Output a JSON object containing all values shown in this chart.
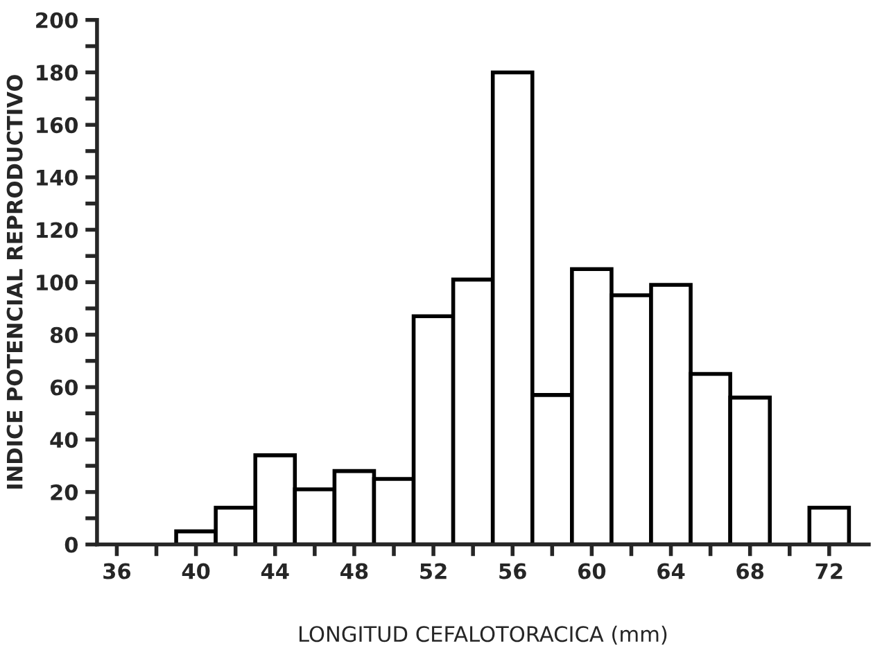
{
  "chart_data": {
    "type": "histogram",
    "xlabel": "LONGITUD CEFALOTORACICA (mm)",
    "ylabel": "INDICE POTENCIAL REPRODUCTIVO",
    "bins": [
      39,
      41,
      43,
      45,
      47,
      49,
      51,
      53,
      55,
      57,
      59,
      61,
      63,
      65,
      67,
      69,
      71,
      73
    ],
    "values": [
      5,
      14,
      34,
      21,
      28,
      25,
      87,
      101,
      180,
      57,
      105,
      95,
      99,
      65,
      56,
      null,
      14
    ],
    "color": "#ffffff",
    "xlim": [
      35,
      74
    ],
    "ylim": [
      0,
      200
    ],
    "xticks": [
      36,
      {
        "value": 38,
        "label": null
      },
      40,
      {
        "value": 42,
        "label": null
      },
      44,
      {
        "value": 46,
        "label": null
      },
      48,
      {
        "value": 50,
        "label": null
      },
      52,
      {
        "value": 54,
        "label": null
      },
      56,
      {
        "value": 58,
        "label": null
      },
      60,
      {
        "value": 62,
        "label": null
      },
      64,
      {
        "value": 66,
        "label": null
      },
      68,
      {
        "value": 70,
        "label": null
      },
      72
    ],
    "yticks": [
      0,
      {
        "value": 10,
        "label": null
      },
      20,
      {
        "value": 30,
        "label": null
      },
      40,
      {
        "value": 50,
        "label": null
      },
      60,
      {
        "value": 70,
        "label": null
      },
      80,
      {
        "value": 90,
        "label": null
      },
      100,
      {
        "value": 110,
        "label": null
      },
      120,
      {
        "value": 130,
        "label": null
      },
      140,
      {
        "value": 150,
        "label": null
      },
      160,
      {
        "value": 170,
        "label": null
      },
      180,
      {
        "value": 190,
        "label": null
      },
      200
    ],
    "grid": false
  }
}
